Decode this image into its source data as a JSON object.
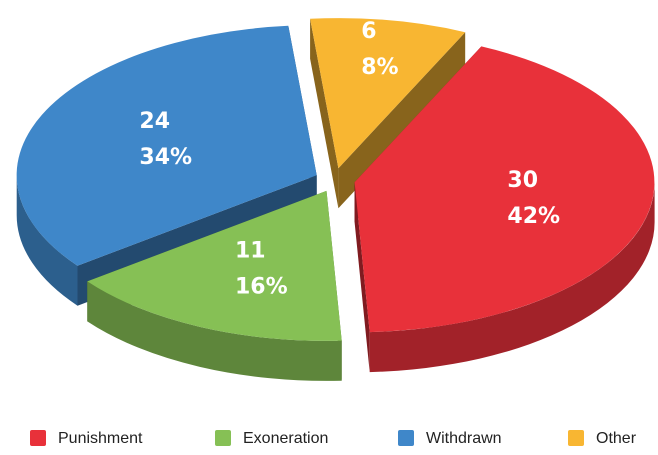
{
  "chart_data": {
    "type": "pie",
    "categories": [
      "Punishment",
      "Exoneration",
      "Withdrawn",
      "Other"
    ],
    "values": [
      30,
      11,
      24,
      6
    ],
    "percent_labels": [
      "42%",
      "16%",
      "34%",
      "8%"
    ],
    "colors": [
      "#e8313a",
      "#86c055",
      "#3f87c9",
      "#f8b632"
    ],
    "legend": "bottom"
  }
}
